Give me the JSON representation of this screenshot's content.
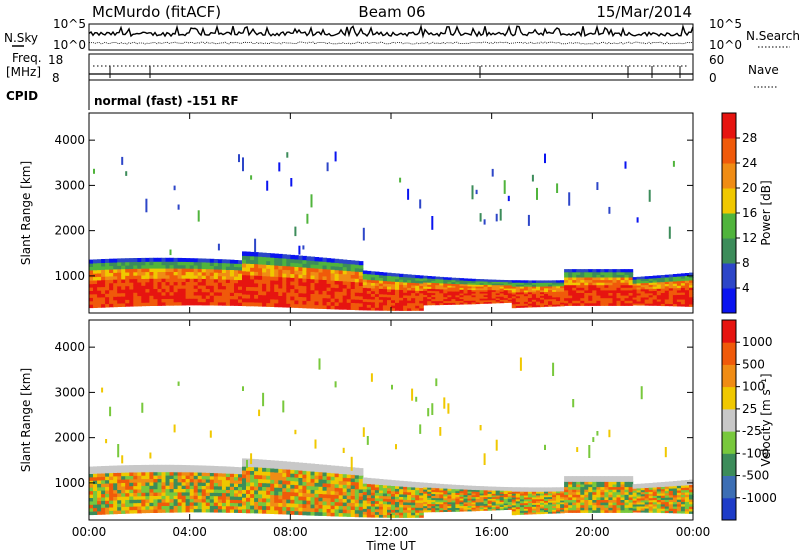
{
  "header": {
    "station": "McMurdo (fitACF)",
    "beam": "Beam 06",
    "date": "15/Mar/2014"
  },
  "top_panel": {
    "left_label": "N.Sky",
    "right_label": "N.Search",
    "left_ticks": [
      "10^5",
      "10^0"
    ],
    "right_ticks": [
      "10^5",
      "10^0"
    ]
  },
  "freq_panel": {
    "label_line1": "Freq.",
    "label_line2": "[MHz]",
    "left_ticks": [
      "18",
      "8"
    ],
    "right_label": "Nave",
    "right_ticks": [
      "60",
      "0"
    ]
  },
  "cpid_panel": {
    "label": "CPID",
    "program": "normal (fast) -151 RF"
  },
  "chart_data": [
    {
      "type": "heatmap",
      "ylabel": "Slant Range [km]",
      "xlabel": "",
      "x_ticks": [
        "00:00",
        "04:00",
        "08:00",
        "12:00",
        "16:00",
        "20:00",
        "00:00"
      ],
      "y_ticks": [
        1000,
        2000,
        3000,
        4000
      ],
      "ylim": [
        180,
        4600
      ],
      "colorbar": {
        "label": "Power [dB]",
        "ticks": [
          "4",
          "8",
          "12",
          "16",
          "20",
          "24",
          "28"
        ],
        "colors": [
          "#0a14f0",
          "#2d46c8",
          "#3c8c5a",
          "#50b43c",
          "#f0c800",
          "#f08c14",
          "#f05a0a",
          "#e61410"
        ]
      }
    },
    {
      "type": "heatmap",
      "ylabel": "Slant Range [km]",
      "xlabel": "Time UT",
      "x_ticks": [
        "00:00",
        "04:00",
        "08:00",
        "12:00",
        "16:00",
        "20:00",
        "00:00"
      ],
      "y_ticks": [
        1000,
        2000,
        3000,
        4000
      ],
      "ylim": [
        180,
        4600
      ],
      "colorbar": {
        "label": "Velocity [m s⁻¹]",
        "ticks": [
          "1000",
          "500",
          "100",
          "25",
          "-25",
          "-100",
          "-500",
          "-1000"
        ],
        "colors": [
          "#1e3cc8",
          "#3c6eb4",
          "#3c8c5a",
          "#78c83c",
          "#c8c8c8",
          "#f0c800",
          "#f08c14",
          "#f05a0a",
          "#e61410"
        ]
      }
    }
  ]
}
